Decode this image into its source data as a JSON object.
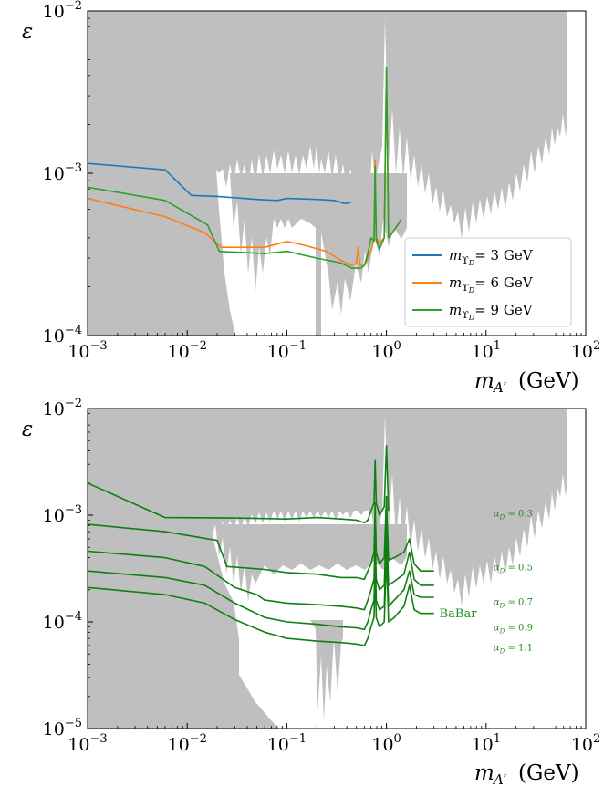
{
  "chart_data": [
    {
      "type": "line",
      "ylabel": "ε",
      "xlabel": "m_{A′} (GeV)",
      "xlabel_main": "m",
      "xlabel_sub": "A′",
      "xlabel_unit": "(GeV)",
      "xscale": "log",
      "yscale": "log",
      "xlim": [
        0.001,
        100
      ],
      "ylim": [
        0.0001,
        0.01
      ],
      "xticks": [
        {
          "value": 0.001,
          "base": "10",
          "exp": "−3"
        },
        {
          "value": 0.01,
          "base": "10",
          "exp": "−2"
        },
        {
          "value": 0.1,
          "base": "10",
          "exp": "−1"
        },
        {
          "value": 1,
          "base": "10",
          "exp": "0"
        },
        {
          "value": 10,
          "base": "10",
          "exp": "1"
        },
        {
          "value": 100,
          "base": "10",
          "exp": "2"
        }
      ],
      "yticks": [
        {
          "value": 0.0001,
          "base": "10",
          "exp": "−4"
        },
        {
          "value": 0.001,
          "base": "10",
          "exp": "−3"
        },
        {
          "value": 0.01,
          "base": "10",
          "exp": "−2"
        }
      ],
      "legend_position": "lower-right",
      "excluded_region_color": "#bfbfbf",
      "series": [
        {
          "name": "m_{ϒD}= 3 GeV",
          "legend_main": "m",
          "legend_sub": "ϒ",
          "legend_subsub": "D",
          "legend_rest": "= 3 GeV",
          "color": "#1f77b4",
          "points": [
            [
              0.001,
              0.00115
            ],
            [
              0.006,
              0.00105
            ],
            [
              0.011,
              0.00073
            ],
            [
              0.02,
              0.00072
            ],
            [
              0.05,
              0.00069
            ],
            [
              0.08,
              0.00068
            ],
            [
              0.1,
              0.0007
            ],
            [
              0.2,
              0.00069
            ],
            [
              0.3,
              0.00068
            ],
            [
              0.38,
              0.00065
            ],
            [
              0.44,
              0.00066
            ]
          ]
        },
        {
          "name": "m_{ϒD}= 6 GeV",
          "legend_main": "m",
          "legend_sub": "ϒ",
          "legend_subsub": "D",
          "legend_rest": "= 6 GeV",
          "color": "#ff7f0e",
          "points": [
            [
              0.001,
              0.0007
            ],
            [
              0.006,
              0.00054
            ],
            [
              0.015,
              0.00043
            ],
            [
              0.022,
              0.00035
            ],
            [
              0.06,
              0.00035
            ],
            [
              0.1,
              0.00038
            ],
            [
              0.15,
              0.00036
            ],
            [
              0.25,
              0.00033
            ],
            [
              0.35,
              0.00029
            ],
            [
              0.45,
              0.00027
            ],
            [
              0.5,
              0.00028
            ],
            [
              0.52,
              0.00035
            ],
            [
              0.54,
              0.00027
            ],
            [
              0.6,
              0.00027
            ],
            [
              0.7,
              0.00033
            ],
            [
              0.75,
              0.0004
            ],
            [
              0.77,
              0.0012
            ],
            [
              0.79,
              0.0004
            ],
            [
              0.85,
              0.00037
            ],
            [
              0.95,
              0.0004
            ],
            [
              1.0,
              0.0043
            ],
            [
              1.05,
              0.0004
            ],
            [
              1.2,
              0.00045
            ],
            [
              1.35,
              0.0005
            ]
          ]
        },
        {
          "name": "m_{ϒD}= 9 GeV",
          "legend_main": "m",
          "legend_sub": "ϒ",
          "legend_subsub": "D",
          "legend_rest": "= 9 GeV",
          "color": "#2ca02c",
          "points": [
            [
              0.001,
              0.00082
            ],
            [
              0.006,
              0.00068
            ],
            [
              0.016,
              0.00048
            ],
            [
              0.021,
              0.00033
            ],
            [
              0.06,
              0.00032
            ],
            [
              0.1,
              0.00033
            ],
            [
              0.2,
              0.0003
            ],
            [
              0.35,
              0.00028
            ],
            [
              0.45,
              0.00026
            ],
            [
              0.55,
              0.00026
            ],
            [
              0.6,
              0.00027
            ],
            [
              0.65,
              0.00032
            ],
            [
              0.7,
              0.0004
            ],
            [
              0.75,
              0.00038
            ],
            [
              0.77,
              0.0011
            ],
            [
              0.79,
              0.00039
            ],
            [
              0.85,
              0.00034
            ],
            [
              0.95,
              0.0004
            ],
            [
              1.0,
              0.0045
            ],
            [
              1.05,
              0.0004
            ],
            [
              1.15,
              0.00043
            ],
            [
              1.3,
              0.00048
            ],
            [
              1.4,
              0.00052
            ]
          ]
        }
      ]
    },
    {
      "type": "line",
      "ylabel": "ε",
      "xlabel": "m_{A′} (GeV)",
      "xlabel_main": "m",
      "xlabel_sub": "A′",
      "xlabel_unit": "(GeV)",
      "xscale": "log",
      "yscale": "log",
      "xlim": [
        0.001,
        100
      ],
      "ylim": [
        1e-05,
        0.01
      ],
      "xticks": [
        {
          "value": 0.001,
          "base": "10",
          "exp": "−3"
        },
        {
          "value": 0.01,
          "base": "10",
          "exp": "−2"
        },
        {
          "value": 0.1,
          "base": "10",
          "exp": "−1"
        },
        {
          "value": 1,
          "base": "10",
          "exp": "0"
        },
        {
          "value": 10,
          "base": "10",
          "exp": "1"
        },
        {
          "value": 100,
          "base": "10",
          "exp": "2"
        }
      ],
      "yticks": [
        {
          "value": 1e-05,
          "base": "10",
          "exp": "−5"
        },
        {
          "value": 0.0001,
          "base": "10",
          "exp": "−4"
        },
        {
          "value": 0.001,
          "base": "10",
          "exp": "−3"
        },
        {
          "value": 0.01,
          "base": "10",
          "exp": "−2"
        }
      ],
      "excluded_region_color": "#bfbfbf",
      "line_color": "#0f7f0f",
      "annotations": [
        {
          "text": "αD = 0.3",
          "main": "α",
          "sub": "D",
          "rest": " = 0.3",
          "x": 0.11,
          "y": 0.00105
        },
        {
          "text": "αD = 0.5",
          "main": "α",
          "sub": "D",
          "rest": " = 0.5",
          "x": 0.11,
          "y": 0.00033
        },
        {
          "text": "αD = 0.7",
          "main": "α",
          "sub": "D",
          "rest": " = 0.7",
          "x": 0.11,
          "y": 0.000155
        },
        {
          "text": "αD = 0.9",
          "main": "α",
          "sub": "D",
          "rest": " = 0.9",
          "x": 0.11,
          "y": 9e-05
        },
        {
          "text": "αD = 1.1",
          "main": "α",
          "sub": "D",
          "rest": " = 1.1",
          "x": 0.11,
          "y": 5.8e-05
        }
      ],
      "babar_label": {
        "text": "BaBar",
        "x": 3.4,
        "y": 0.00011
      },
      "series": [
        {
          "label": "αD = 0.3",
          "points": [
            [
              0.001,
              0.002
            ],
            [
              0.006,
              0.00095
            ],
            [
              0.03,
              0.00094
            ],
            [
              0.1,
              0.00092
            ],
            [
              0.2,
              0.00095
            ],
            [
              0.35,
              0.00092
            ],
            [
              0.5,
              0.0009
            ],
            [
              0.6,
              0.00085
            ],
            [
              0.65,
              0.0009
            ],
            [
              0.7,
              0.0011
            ],
            [
              0.75,
              0.0013
            ],
            [
              0.77,
              0.0033
            ],
            [
              0.79,
              0.0013
            ],
            [
              0.85,
              0.001
            ],
            [
              0.95,
              0.0012
            ],
            [
              1.0,
              0.0045
            ],
            [
              1.05,
              0.0011
            ]
          ]
        },
        {
          "label": "αD = 0.5",
          "points": [
            [
              0.001,
              0.00082
            ],
            [
              0.006,
              0.0007
            ],
            [
              0.02,
              0.00058
            ],
            [
              0.025,
              0.00033
            ],
            [
              0.06,
              0.00031
            ],
            [
              0.1,
              0.00029
            ],
            [
              0.2,
              0.00028
            ],
            [
              0.35,
              0.00026
            ],
            [
              0.5,
              0.00026
            ],
            [
              0.6,
              0.00025
            ],
            [
              0.65,
              0.0003
            ],
            [
              0.7,
              0.00035
            ],
            [
              0.75,
              0.00045
            ],
            [
              0.77,
              0.0013
            ],
            [
              0.79,
              0.00045
            ],
            [
              0.85,
              0.00035
            ],
            [
              0.95,
              0.0004
            ],
            [
              1.0,
              0.0015
            ],
            [
              1.05,
              0.00038
            ],
            [
              1.2,
              0.0004
            ],
            [
              1.5,
              0.00045
            ],
            [
              1.7,
              0.0006
            ],
            [
              1.9,
              0.00035
            ],
            [
              2.2,
              0.0003
            ],
            [
              2.6,
              0.0003
            ],
            [
              3.0,
              0.0003
            ]
          ]
        },
        {
          "label": "αD = 0.7",
          "points": [
            [
              0.001,
              0.00046
            ],
            [
              0.006,
              0.0004
            ],
            [
              0.015,
              0.00033
            ],
            [
              0.03,
              0.00021
            ],
            [
              0.05,
              0.00018
            ],
            [
              0.06,
              0.00016
            ],
            [
              0.1,
              0.00015
            ],
            [
              0.2,
              0.000145
            ],
            [
              0.35,
              0.00014
            ],
            [
              0.5,
              0.000135
            ],
            [
              0.6,
              0.00013
            ],
            [
              0.65,
              0.00016
            ],
            [
              0.7,
              0.0002
            ],
            [
              0.75,
              0.00025
            ],
            [
              0.77,
              0.0007
            ],
            [
              0.79,
              0.00025
            ],
            [
              0.85,
              0.0002
            ],
            [
              0.95,
              0.00022
            ],
            [
              1.0,
              0.0009
            ],
            [
              1.05,
              0.00022
            ],
            [
              1.2,
              0.00024
            ],
            [
              1.5,
              0.00028
            ],
            [
              1.7,
              0.00045
            ],
            [
              1.9,
              0.00025
            ],
            [
              2.2,
              0.00022
            ],
            [
              2.6,
              0.00022
            ],
            [
              3.0,
              0.00022
            ]
          ]
        },
        {
          "label": "αD = 0.9",
          "points": [
            [
              0.001,
              0.0003
            ],
            [
              0.006,
              0.00026
            ],
            [
              0.015,
              0.00022
            ],
            [
              0.03,
              0.00015
            ],
            [
              0.06,
              0.00011
            ],
            [
              0.1,
              0.0001
            ],
            [
              0.2,
              9.5e-05
            ],
            [
              0.35,
              9e-05
            ],
            [
              0.5,
              8.8e-05
            ],
            [
              0.6,
              8.5e-05
            ],
            [
              0.65,
              0.0001
            ],
            [
              0.7,
              0.00013
            ],
            [
              0.75,
              0.00016
            ],
            [
              0.77,
              0.00045
            ],
            [
              0.79,
              0.00016
            ],
            [
              0.85,
              0.00013
            ],
            [
              0.95,
              0.00014
            ],
            [
              1.0,
              0.0006
            ],
            [
              1.05,
              0.00014
            ],
            [
              1.2,
              0.00016
            ],
            [
              1.5,
              0.0002
            ],
            [
              1.7,
              0.0003
            ],
            [
              1.9,
              0.00018
            ],
            [
              2.2,
              0.00017
            ],
            [
              2.6,
              0.00017
            ],
            [
              3.0,
              0.00017
            ]
          ]
        },
        {
          "label": "αD = 1.1",
          "points": [
            [
              0.001,
              0.00021
            ],
            [
              0.006,
              0.00018
            ],
            [
              0.015,
              0.00015
            ],
            [
              0.03,
              0.000105
            ],
            [
              0.06,
              8e-05
            ],
            [
              0.1,
              7e-05
            ],
            [
              0.2,
              6.6e-05
            ],
            [
              0.35,
              6.4e-05
            ],
            [
              0.5,
              6.2e-05
            ],
            [
              0.6,
              6e-05
            ],
            [
              0.65,
              7e-05
            ],
            [
              0.7,
              9e-05
            ],
            [
              0.75,
              0.00011
            ],
            [
              0.77,
              0.00032
            ],
            [
              0.79,
              0.00011
            ],
            [
              0.85,
              9e-05
            ],
            [
              0.95,
              0.0001
            ],
            [
              1.0,
              0.00042
            ],
            [
              1.05,
              0.0001
            ],
            [
              1.2,
              0.00011
            ],
            [
              1.5,
              0.00014
            ],
            [
              1.7,
              0.00022
            ],
            [
              1.9,
              0.00013
            ],
            [
              2.2,
              0.00012
            ],
            [
              2.6,
              0.00012
            ],
            [
              3.0,
              0.00012
            ]
          ]
        }
      ]
    }
  ]
}
